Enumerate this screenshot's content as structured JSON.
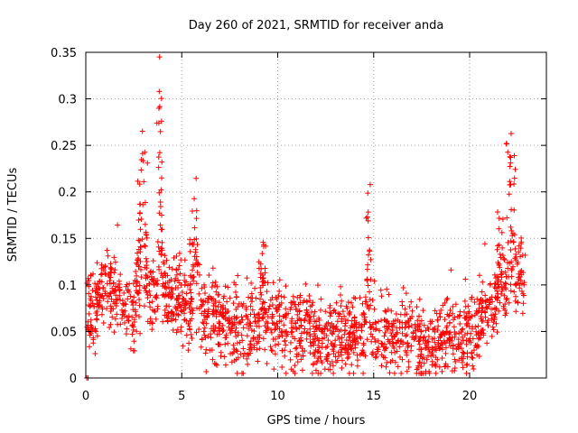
{
  "chart_data": {
    "type": "scatter",
    "title": "Day 260 of 2021, SRMTID for receiver anda",
    "xlabel": "GPS time / hours",
    "ylabel": "SRMTID / TECUs",
    "xlim": [
      0,
      24
    ],
    "ylim": [
      0,
      0.35
    ],
    "xticks": [
      0,
      5,
      10,
      15,
      20
    ],
    "xtick_labels": [
      "0",
      "5",
      "10",
      "15",
      "20"
    ],
    "yticks": [
      0,
      0.05,
      0.1,
      0.15,
      0.2,
      0.25,
      0.3,
      0.35
    ],
    "ytick_labels": [
      "0",
      "0.05",
      "0.1",
      "0.15",
      "0.2",
      "0.25",
      "0.3",
      "0.35"
    ],
    "grid": true,
    "marker": "+",
    "color": "#ff0000",
    "baseline": [
      [
        0,
        0.07
      ],
      [
        0.5,
        0.08
      ],
      [
        1,
        0.09
      ],
      [
        1.5,
        0.09
      ],
      [
        2,
        0.08
      ],
      [
        2.5,
        0.075
      ],
      [
        3,
        0.08
      ],
      [
        3.5,
        0.09
      ],
      [
        4,
        0.095
      ],
      [
        4.5,
        0.09
      ],
      [
        5,
        0.085
      ],
      [
        5.5,
        0.075
      ],
      [
        6,
        0.06
      ],
      [
        7,
        0.06
      ],
      [
        8,
        0.055
      ],
      [
        9,
        0.06
      ],
      [
        10,
        0.055
      ],
      [
        11,
        0.05
      ],
      [
        12,
        0.045
      ],
      [
        13,
        0.045
      ],
      [
        14,
        0.05
      ],
      [
        15,
        0.05
      ],
      [
        16,
        0.045
      ],
      [
        17,
        0.04
      ],
      [
        17.5,
        0.035
      ],
      [
        18,
        0.04
      ],
      [
        19,
        0.045
      ],
      [
        20,
        0.05
      ],
      [
        21,
        0.07
      ],
      [
        21.5,
        0.085
      ],
      [
        22,
        0.1
      ],
      [
        22.5,
        0.11
      ],
      [
        23,
        0.11
      ]
    ],
    "features": [
      {
        "x": [
          2.6,
          3.3
        ],
        "ymax": 0.26
      },
      {
        "x": [
          3.7,
          4.0
        ],
        "ymax": 0.345
      },
      {
        "x": [
          5.4,
          6.0
        ],
        "ymax": 0.2
      },
      {
        "x": [
          9.0,
          9.4
        ],
        "ymax": 0.145
      },
      {
        "x": [
          14.6,
          14.9
        ],
        "ymax": 0.225
      },
      {
        "x": [
          21.4,
          21.8
        ],
        "ymax": 0.18
      },
      {
        "x": [
          21.9,
          22.4
        ],
        "ymax": 0.275
      }
    ],
    "zero_points": [
      [
        0.05,
        0
      ],
      [
        0.12,
        0
      ]
    ],
    "spread": 0.03,
    "samples": 1900
  }
}
